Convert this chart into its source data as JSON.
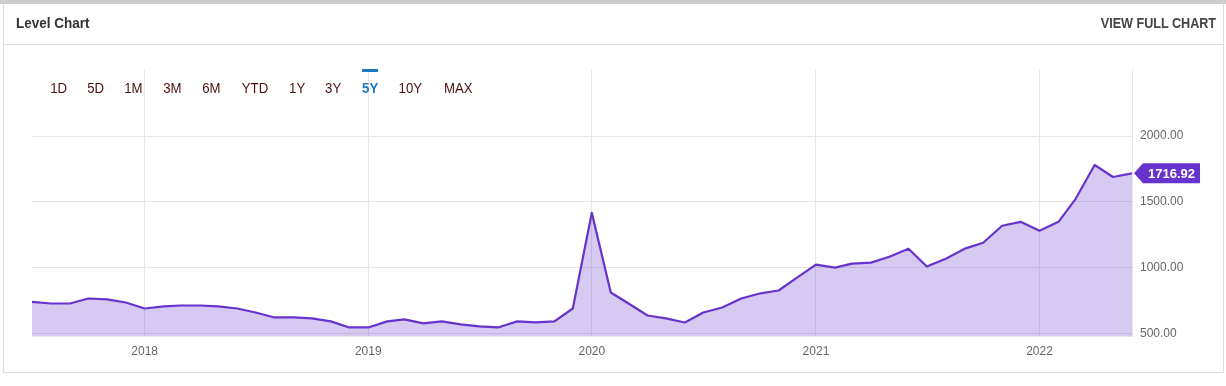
{
  "chart_data": {
    "type": "area",
    "title": "Level Chart",
    "annotations": [
      "VIEW FULL CHART",
      "1D",
      "5D",
      "1M",
      "3M",
      "6M",
      "YTD",
      "1Y",
      "3Y",
      "5Y",
      "10Y",
      "MAX"
    ],
    "x": [
      "2017-07-01",
      "2017-08-01",
      "2017-09-01",
      "2017-10-01",
      "2017-11-01",
      "2017-12-01",
      "2018-01-01",
      "2018-02-01",
      "2018-03-01",
      "2018-04-01",
      "2018-05-01",
      "2018-06-01",
      "2018-07-01",
      "2018-08-01",
      "2018-09-01",
      "2018-10-01",
      "2018-11-01",
      "2018-12-01",
      "2019-01-01",
      "2019-02-01",
      "2019-03-01",
      "2019-04-01",
      "2019-05-01",
      "2019-06-01",
      "2019-07-01",
      "2019-08-01",
      "2019-09-01",
      "2019-10-01",
      "2019-11-01",
      "2019-12-01",
      "2020-01-01",
      "2020-02-01",
      "2020-03-01",
      "2020-04-01",
      "2020-05-01",
      "2020-06-01",
      "2020-07-01",
      "2020-08-01",
      "2020-09-01",
      "2020-10-01",
      "2020-11-01",
      "2020-12-01",
      "2021-01-01",
      "2021-02-01",
      "2021-03-01",
      "2021-04-01",
      "2021-05-01",
      "2021-06-01",
      "2021-07-01",
      "2021-08-01",
      "2021-09-01",
      "2021-10-01",
      "2021-11-01",
      "2021-12-01",
      "2022-01-01",
      "2022-02-01",
      "2022-03-01",
      "2022-04-01",
      "2022-05-01",
      "2022-06-01"
    ],
    "series": [
      {
        "color": "#6633cc",
        "values": [
          740,
          727,
          727,
          765,
          758,
          735,
          689,
          705,
          712,
          712,
          705,
          689,
          659,
          621,
          621,
          614,
          591,
          545,
          545,
          591,
          606,
          576,
          591,
          568,
          553,
          545,
          591,
          583,
          591,
          689,
          1417,
          811,
          727,
          636,
          614,
          583,
          659,
          697,
          765,
          803,
          826,
          924,
          1023,
          1000,
          1030,
          1038,
          1083,
          1144,
          1008,
          1068,
          1144,
          1189,
          1318,
          1348,
          1280,
          1348,
          1523,
          1780,
          1689,
          1716.92
        ],
        "value_labels": [
          null,
          null,
          null,
          null,
          null,
          null,
          null,
          null,
          null,
          null,
          null,
          null,
          null,
          null,
          null,
          null,
          null,
          null,
          null,
          null,
          null,
          null,
          null,
          null,
          null,
          null,
          null,
          null,
          null,
          null,
          null,
          null,
          null,
          null,
          null,
          null,
          null,
          null,
          null,
          null,
          null,
          null,
          null,
          null,
          null,
          null,
          null,
          null,
          null,
          null,
          null,
          null,
          null,
          null,
          null,
          null,
          null,
          null,
          null,
          "1716.92"
        ]
      }
    ],
    "xlim": [
      "2017-07-01",
      "2022-06-01"
    ],
    "xticks": [
      {
        "value": "2018-01-01",
        "label": "2018"
      },
      {
        "value": "2019-01-01",
        "label": "2019"
      },
      {
        "value": "2020-01-01",
        "label": "2020"
      },
      {
        "value": "2021-01-01",
        "label": "2021"
      },
      {
        "value": "2022-01-01",
        "label": "2022"
      }
    ],
    "ylim": [
      480,
      2510
    ],
    "yticks": [
      {
        "value": 500,
        "label": "500.00"
      },
      {
        "value": 1000,
        "label": "1000.00"
      },
      {
        "value": 1500,
        "label": "1500.00"
      },
      {
        "value": 2000,
        "label": "2000.00"
      }
    ],
    "grid": true,
    "legend": false,
    "marker": "none",
    "line_style": "solid"
  }
}
